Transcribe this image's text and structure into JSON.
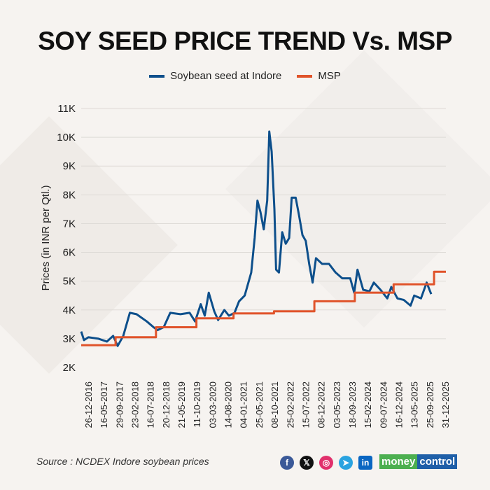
{
  "title": "SOY SEED PRICE TREND Vs. MSP",
  "source": "Source : NCDEX Indore soybean prices",
  "brand": {
    "part1": "money",
    "part2": "control"
  },
  "social_icons": [
    "facebook-icon",
    "x-icon",
    "instagram-icon",
    "telegram-icon",
    "linkedin-icon"
  ],
  "chart_data": {
    "type": "line",
    "title": "SOY SEED PRICE TREND Vs. MSP",
    "ylabel": "Prices (in INR per Qtl.)",
    "xlabel": "",
    "ylim": [
      2000,
      11000
    ],
    "yticks": [
      2000,
      3000,
      4000,
      5000,
      6000,
      7000,
      8000,
      9000,
      10000,
      11000
    ],
    "ytick_labels": [
      "2K",
      "3K",
      "4K",
      "5K",
      "6K",
      "7K",
      "8K",
      "9K",
      "10K",
      "11K"
    ],
    "xlim": [
      "2016-12-26",
      "2025-12-31"
    ],
    "xtick_labels": [
      "26-12-2016",
      "16-05-2017",
      "29-09-2017",
      "23-02-2018",
      "16-07-2018",
      "20-12-2018",
      "21-05-2019",
      "11-10-2019",
      "03-03-2020",
      "14-08-2020",
      "04-01-2021",
      "25-05-2021",
      "08-10-2021",
      "25-02-2022",
      "15-07-2022",
      "08-12-2022",
      "03-05-2023",
      "18-09-2023",
      "15-02-2024",
      "09-07-2024",
      "16-12-2024",
      "13-05-2025",
      "25-09-2025",
      "31-12-2025"
    ],
    "grid": true,
    "legend_placement": "top",
    "series": [
      {
        "name": "Soybean seed at Indore",
        "color": "#0d4f8b",
        "step": false,
        "points": [
          [
            "2016-12-26",
            3250
          ],
          [
            "2017-01-20",
            2950
          ],
          [
            "2017-03-01",
            3050
          ],
          [
            "2017-06-01",
            3000
          ],
          [
            "2017-08-15",
            2900
          ],
          [
            "2017-10-10",
            3100
          ],
          [
            "2017-11-20",
            2750
          ],
          [
            "2018-01-10",
            3100
          ],
          [
            "2018-03-10",
            3900
          ],
          [
            "2018-05-10",
            3850
          ],
          [
            "2018-08-10",
            3600
          ],
          [
            "2018-10-10",
            3400
          ],
          [
            "2018-11-15",
            3300
          ],
          [
            "2019-01-10",
            3400
          ],
          [
            "2019-03-10",
            3900
          ],
          [
            "2019-06-10",
            3850
          ],
          [
            "2019-09-01",
            3900
          ],
          [
            "2019-10-20",
            3600
          ],
          [
            "2019-12-10",
            4200
          ],
          [
            "2020-01-15",
            3800
          ],
          [
            "2020-02-20",
            4600
          ],
          [
            "2020-04-10",
            3950
          ],
          [
            "2020-05-15",
            3650
          ],
          [
            "2020-07-10",
            4000
          ],
          [
            "2020-08-20",
            3800
          ],
          [
            "2020-10-10",
            3900
          ],
          [
            "2020-11-20",
            4300
          ],
          [
            "2021-01-10",
            4500
          ],
          [
            "2021-03-10",
            5300
          ],
          [
            "2021-04-10",
            6500
          ],
          [
            "2021-05-05",
            7800
          ],
          [
            "2021-06-01",
            7400
          ],
          [
            "2021-07-01",
            6800
          ],
          [
            "2021-08-01",
            7800
          ],
          [
            "2021-08-20",
            10200
          ],
          [
            "2021-09-10",
            9500
          ],
          [
            "2021-10-05",
            7500
          ],
          [
            "2021-10-20",
            5400
          ],
          [
            "2021-11-15",
            5300
          ],
          [
            "2021-12-15",
            6700
          ],
          [
            "2022-01-15",
            6300
          ],
          [
            "2022-02-15",
            6500
          ],
          [
            "2022-03-10",
            7900
          ],
          [
            "2022-04-15",
            7900
          ],
          [
            "2022-05-15",
            7300
          ],
          [
            "2022-06-15",
            6600
          ],
          [
            "2022-07-15",
            6400
          ],
          [
            "2022-08-15",
            5600
          ],
          [
            "2022-09-15",
            4950
          ],
          [
            "2022-10-15",
            5800
          ],
          [
            "2022-12-10",
            5600
          ],
          [
            "2023-02-10",
            5600
          ],
          [
            "2023-04-10",
            5300
          ],
          [
            "2023-06-10",
            5100
          ],
          [
            "2023-08-20",
            5100
          ],
          [
            "2023-09-25",
            4600
          ],
          [
            "2023-10-25",
            5400
          ],
          [
            "2023-12-15",
            4700
          ],
          [
            "2024-02-10",
            4650
          ],
          [
            "2024-03-20",
            4950
          ],
          [
            "2024-05-20",
            4700
          ],
          [
            "2024-07-20",
            4400
          ],
          [
            "2024-08-25",
            4800
          ],
          [
            "2024-10-20",
            4400
          ],
          [
            "2024-12-15",
            4350
          ],
          [
            "2025-02-15",
            4150
          ],
          [
            "2025-03-20",
            4500
          ],
          [
            "2025-05-20",
            4400
          ],
          [
            "2025-07-10",
            4950
          ],
          [
            "2025-08-20",
            4550
          ]
        ]
      },
      {
        "name": "MSP",
        "color": "#e0532a",
        "step": true,
        "points": [
          [
            "2016-12-26",
            2775
          ],
          [
            "2017-11-01",
            3050
          ],
          [
            "2018-11-01",
            3399
          ],
          [
            "2019-11-01",
            3710
          ],
          [
            "2020-10-01",
            3880
          ],
          [
            "2021-10-01",
            3950
          ],
          [
            "2022-10-01",
            4300
          ],
          [
            "2023-10-01",
            4600
          ],
          [
            "2024-09-15",
            4892
          ],
          [
            "2025-09-15",
            5328
          ],
          [
            "2025-12-31",
            5328
          ]
        ]
      }
    ]
  }
}
